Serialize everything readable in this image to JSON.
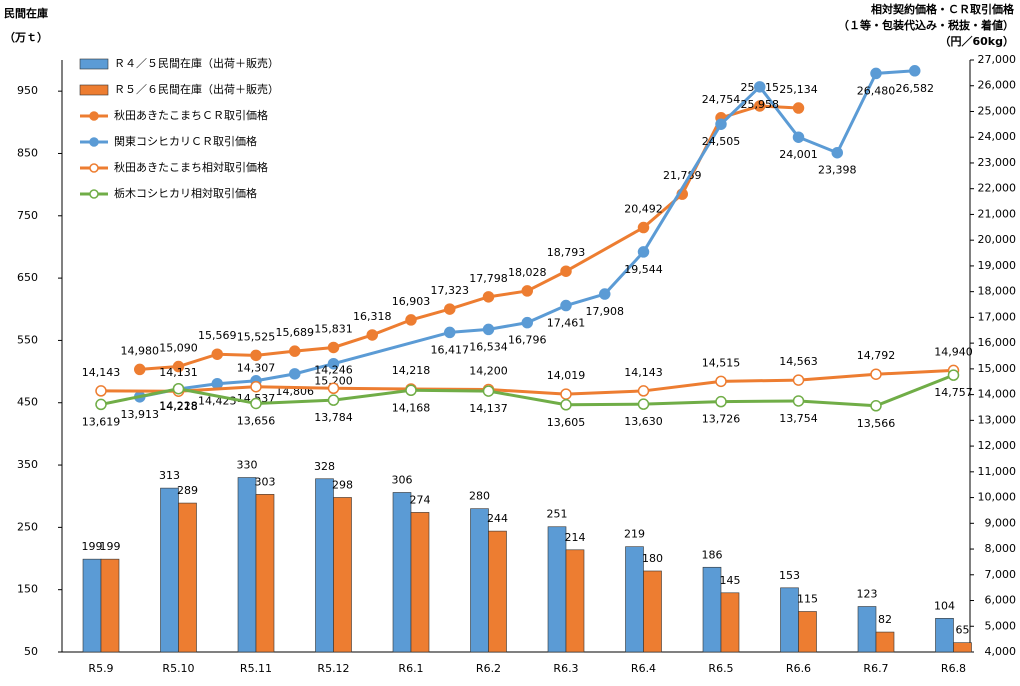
{
  "chart_data": {
    "type": "combo",
    "y_label": [
      "民間在庫",
      "（万ｔ）"
    ],
    "y2_label": [
      "相対契約価格・ＣＲ取引価格",
      "（１等・包装代込み・税抜・着値）",
      "（円／60kg）"
    ],
    "categories": [
      "R5.9",
      null,
      "R5.10",
      null,
      "R5.11",
      null,
      "R5.12",
      null,
      "R6.1",
      null,
      "R6.2",
      null,
      "R6.3",
      null,
      "R6.4",
      null,
      "R6.5",
      null,
      "R6.6",
      null,
      "R6.7",
      null,
      "R6.8"
    ],
    "ylim": [
      50,
      1000
    ],
    "yticks": [
      50,
      150,
      250,
      350,
      450,
      550,
      650,
      750,
      850,
      950
    ],
    "y2lim": [
      4000,
      27000
    ],
    "y2ticks": [
      {
        "value": 4000,
        "label": "4,000"
      },
      {
        "value": 5000,
        "label": "5,000"
      },
      {
        "value": 6000,
        "label": "6,000"
      },
      {
        "value": 7000,
        "label": "7,000"
      },
      {
        "value": 8000,
        "label": "8,000"
      },
      {
        "value": 9000,
        "label": "9,000"
      },
      {
        "value": 10000,
        "label": "10,000"
      },
      {
        "value": 11000,
        "label": "11,000"
      },
      {
        "value": 12000,
        "label": "12,000"
      },
      {
        "value": 13000,
        "label": "13,000"
      },
      {
        "value": 14000,
        "label": "14,000"
      },
      {
        "value": 15000,
        "label": "15,000"
      },
      {
        "value": 16000,
        "label": "16,000"
      },
      {
        "value": 17000,
        "label": "17,000"
      },
      {
        "value": 18000,
        "label": "18,000"
      },
      {
        "value": 19000,
        "label": "19,000"
      },
      {
        "value": 20000,
        "label": "20,000"
      },
      {
        "value": 21000,
        "label": "21,000"
      },
      {
        "value": 22000,
        "label": "22,000"
      },
      {
        "value": 23000,
        "label": "23,000"
      },
      {
        "value": 24000,
        "label": "24,000"
      },
      {
        "value": 25000,
        "label": "25,000"
      },
      {
        "value": 26000,
        "label": "26,000"
      },
      {
        "value": 27000,
        "label": "27,000"
      }
    ],
    "connect_gaps": true,
    "legend": "top-left",
    "series": [
      {
        "name": "Ｒ４／５民間在庫（出荷＋販売）",
        "type": "bar",
        "color": "#5b9bd5",
        "values": [
          199,
          null,
          313,
          null,
          330,
          null,
          328,
          null,
          306,
          null,
          280,
          null,
          251,
          null,
          219,
          null,
          186,
          null,
          153,
          null,
          123,
          null,
          104
        ]
      },
      {
        "name": "Ｒ５／６民間在庫（出荷＋販売）",
        "type": "bar",
        "color": "#ed7d31",
        "values": [
          199,
          null,
          289,
          null,
          303,
          null,
          298,
          null,
          274,
          null,
          244,
          null,
          214,
          null,
          180,
          null,
          145,
          null,
          115,
          null,
          82,
          null,
          65
        ]
      },
      {
        "name": "秋田あきたこまちＣＲ取引価格",
        "type": "line",
        "axis": "y2",
        "color": "#ed7d31",
        "marker": "filled",
        "label_pos": "above",
        "values": [
          null,
          14980,
          15090,
          15569,
          15525,
          15689,
          15831,
          16318,
          16903,
          17323,
          17798,
          18028,
          18793,
          null,
          20492,
          21789,
          24754,
          25215,
          25134,
          null,
          null,
          null,
          null
        ],
        "value_labels": [
          null,
          "14,980",
          "15,090",
          "15,569",
          "15,525",
          "15,689",
          "15,831",
          "16,318",
          "16,903",
          "17,323",
          "17,798",
          "18,028",
          "18,793",
          null,
          "20,492",
          "21,789",
          "24,754",
          "25,215",
          "25,134",
          null,
          null,
          null,
          null
        ]
      },
      {
        "name": "関東コシヒカリＣＲ取引価格",
        "type": "line",
        "axis": "y2",
        "color": "#5b9bd5",
        "marker": "filled",
        "label_pos": "below",
        "values": [
          null,
          13913,
          14218,
          14423,
          14537,
          14806,
          15200,
          null,
          null,
          16417,
          16534,
          16796,
          17461,
          17908,
          19544,
          null,
          24505,
          25958,
          24001,
          23398,
          26480,
          26582,
          null
        ],
        "value_labels": [
          null,
          "13,913",
          "14,218",
          "14,423",
          "14,537",
          "14,806",
          "15,200",
          null,
          null,
          "16,417",
          "16,534",
          "16,796",
          "17,461",
          "17,908",
          "19,544",
          null,
          "24,505",
          "25,958",
          "24,001",
          "23,398",
          "26,480",
          "26,582",
          null
        ]
      },
      {
        "name": "秋田あきたこまち相対取引価格",
        "type": "line",
        "axis": "y2",
        "color": "#ed7d31",
        "marker": "hollow",
        "label_pos": "above",
        "values": [
          14143,
          null,
          14131,
          null,
          14307,
          null,
          14246,
          null,
          14218,
          null,
          14200,
          null,
          14019,
          null,
          14143,
          null,
          14515,
          null,
          14563,
          null,
          14792,
          null,
          14940
        ],
        "value_labels": [
          "14,143",
          null,
          "14,131",
          null,
          "14,307",
          null,
          "14,246",
          null,
          "14,218",
          null,
          "14,200",
          null,
          "14,019",
          null,
          "14,143",
          null,
          "14,515",
          null,
          "14,563",
          null,
          "14,792",
          null,
          "14,940"
        ]
      },
      {
        "name": "栃木コシヒカリ相対取引価格",
        "type": "line",
        "axis": "y2",
        "color": "#70ad47",
        "marker": "hollow",
        "label_pos": "below",
        "values": [
          13619,
          null,
          14228,
          null,
          13656,
          null,
          13784,
          null,
          14168,
          null,
          14137,
          null,
          13605,
          null,
          13630,
          null,
          13726,
          null,
          13754,
          null,
          13566,
          null,
          14757
        ],
        "value_labels": [
          "13,619",
          null,
          "14,228",
          null,
          "13,656",
          null,
          "13,784",
          null,
          "14,168",
          null,
          "14,137",
          null,
          "13,605",
          null,
          "13,630",
          null,
          "13,726",
          null,
          "13,754",
          null,
          "13,566",
          null,
          "14,757"
        ]
      }
    ]
  }
}
